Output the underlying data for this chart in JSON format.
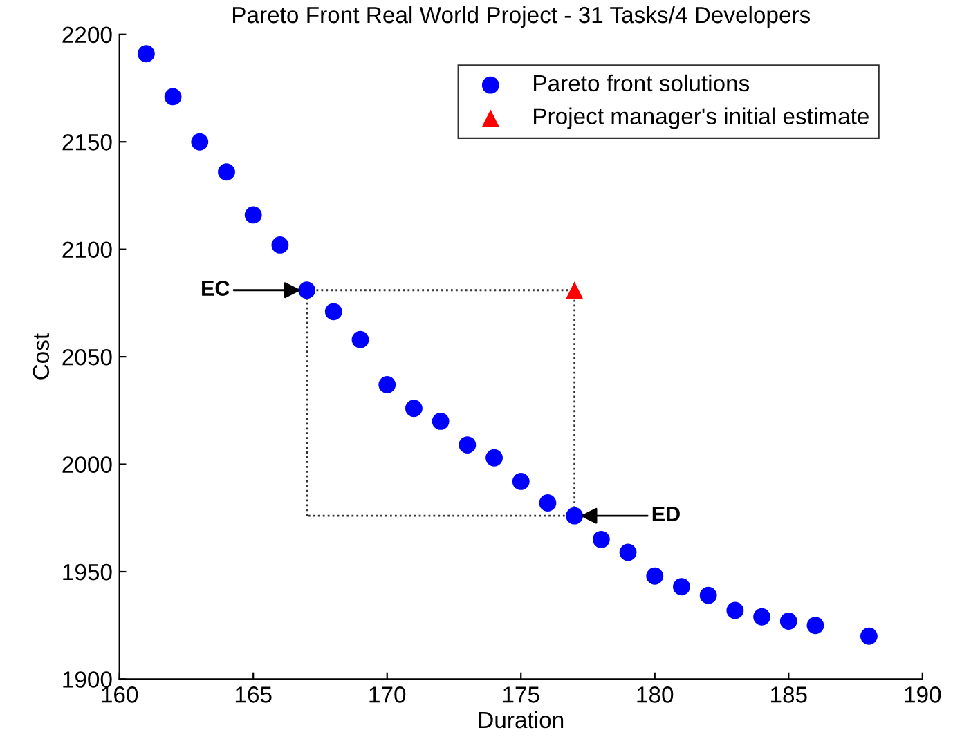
{
  "chart_data": {
    "type": "scatter",
    "title": "Pareto Front Real World Project - 31 Tasks/4 Developers",
    "xlabel": "Duration",
    "ylabel": "Cost",
    "series": [
      {
        "name": "Pareto front solutions",
        "color": "#0000ff",
        "marker": "circle",
        "x": [
          161,
          162,
          163,
          164,
          165,
          166,
          167,
          168,
          169,
          170,
          171,
          172,
          173,
          174,
          175,
          176,
          177,
          178,
          179,
          180,
          181,
          182,
          183,
          184,
          185,
          186,
          188
        ],
        "values": [
          2191,
          2171,
          2150,
          2136,
          2116,
          2102,
          2081,
          2071,
          2058,
          2037,
          2026,
          2020,
          2009,
          2003,
          1992,
          1982,
          1976,
          1965,
          1959,
          1948,
          1943,
          1939,
          1932,
          1929,
          1927,
          1925,
          1920
        ]
      },
      {
        "name": "Project manager's initial estimate",
        "color": "#ff0000",
        "marker": "triangle",
        "x": [
          177
        ],
        "values": [
          2081
        ]
      }
    ],
    "annotations": [
      {
        "text": "EC",
        "x": 167,
        "y": 2081
      },
      {
        "text": "ED",
        "x": 177,
        "y": 1976
      }
    ],
    "xlim": [
      160,
      190
    ],
    "xticks": [
      160,
      165,
      170,
      175,
      180,
      185,
      190
    ],
    "ylim": [
      1900,
      2200
    ],
    "yticks": [
      1900,
      1950,
      2000,
      2050,
      2100,
      2150,
      2200
    ],
    "grid": false,
    "legend": "top right"
  }
}
